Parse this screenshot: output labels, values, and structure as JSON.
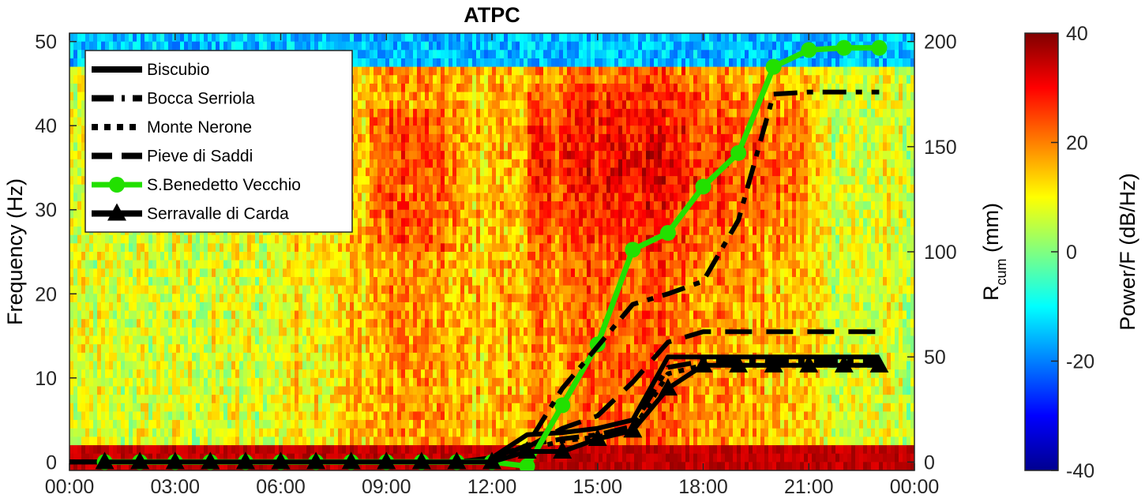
{
  "chart_data": {
    "type": "line",
    "title": "ATPC",
    "background": "spectrogram",
    "xlabel": "",
    "x_tick_labels": [
      "00:00",
      "03:00",
      "06:00",
      "09:00",
      "12:00",
      "15:00",
      "18:00",
      "21:00",
      "00:00"
    ],
    "x_tick_hours": [
      0,
      3,
      6,
      9,
      12,
      15,
      18,
      21,
      24
    ],
    "xlim_hours": [
      0,
      24
    ],
    "left_axis": {
      "label": "Frequency (Hz)",
      "ylim": [
        -1,
        51
      ],
      "ticks": [
        "0",
        "10",
        "20",
        "30",
        "40",
        "50"
      ],
      "tick_values": [
        0,
        10,
        20,
        30,
        40,
        50
      ]
    },
    "right_axis": {
      "label_main": "R",
      "label_sub": "cum",
      "label_unit": " (mm)",
      "ylim": [
        -4,
        204
      ],
      "ticks": [
        "0",
        "50",
        "100",
        "150",
        "200"
      ],
      "tick_values": [
        0,
        50,
        100,
        150,
        200
      ]
    },
    "colorbar": {
      "label": "Power/F (dB/Hz)",
      "range": [
        -40,
        40
      ],
      "ticks": [
        "-40",
        "-20",
        "0",
        "20",
        "40"
      ],
      "tick_values": [
        -40,
        -20,
        0,
        20,
        40
      ]
    },
    "legend_position": "top-left",
    "series": [
      {
        "name": "Biscubio",
        "color": "#000000",
        "style": "solid",
        "marker": "none",
        "x": [
          0,
          11,
          12,
          13,
          14,
          15,
          16,
          17,
          18,
          19,
          20,
          21,
          22,
          23
        ],
        "y": [
          0,
          0,
          2,
          13,
          14,
          16,
          20,
          50,
          50,
          50,
          50,
          50,
          50,
          50
        ]
      },
      {
        "name": "Bocca Serriola",
        "color": "#000000",
        "style": "dashdot",
        "marker": "none",
        "x": [
          0,
          11,
          12,
          13,
          14,
          15,
          16,
          17,
          18,
          19,
          20,
          21,
          22,
          23
        ],
        "y": [
          0,
          0,
          1,
          8,
          11,
          13,
          17,
          45,
          48,
          48,
          48,
          48,
          48,
          48
        ]
      },
      {
        "name": "Monte Nerone",
        "color": "#000000",
        "style": "dotted",
        "marker": "none",
        "x": [
          0,
          11,
          12,
          13,
          14,
          15,
          16,
          17,
          18,
          19,
          20,
          21,
          22,
          23
        ],
        "y": [
          0,
          0,
          1,
          6,
          10,
          12,
          15,
          42,
          46,
          46,
          46,
          46,
          46,
          46
        ]
      },
      {
        "name": "Pieve di Saddi",
        "color": "#000000",
        "style": "dashed",
        "marker": "none",
        "x": [
          0,
          11,
          12,
          13,
          14,
          15,
          16,
          17,
          18,
          19,
          20,
          21,
          22,
          23
        ],
        "y": [
          0,
          0,
          1,
          7,
          16,
          22,
          38,
          57,
          62,
          62,
          62,
          62,
          62,
          62
        ]
      },
      {
        "name": "S.Benedetto Vecchio",
        "color": "#22e000",
        "style": "solid",
        "marker": "circle",
        "x": [
          1,
          2,
          3,
          4,
          5,
          6,
          7,
          8,
          9,
          10,
          11,
          12,
          13,
          14,
          15,
          16,
          17,
          18,
          19,
          20,
          21,
          22,
          23
        ],
        "y": [
          0,
          0,
          0,
          0,
          0,
          0,
          0,
          0,
          0,
          0,
          0,
          0,
          -2,
          27,
          56,
          101,
          109,
          131,
          147,
          188,
          196,
          197,
          197
        ]
      },
      {
        "name": "Serravalle di Carda",
        "color": "#000000",
        "style": "solid",
        "marker": "triangle",
        "x": [
          1,
          2,
          3,
          4,
          5,
          6,
          7,
          8,
          9,
          10,
          11,
          12,
          13,
          14,
          15,
          16,
          17,
          18,
          19,
          20,
          21,
          22,
          23
        ],
        "y": [
          0,
          0,
          0,
          0,
          0,
          0,
          0,
          0,
          0,
          0,
          0,
          0,
          5,
          5,
          11,
          15,
          35,
          46,
          46,
          46,
          46,
          46,
          46
        ]
      },
      {
        "name": "",
        "color": "#000000",
        "style": "dashdot",
        "marker": "none",
        "x": [
          12,
          13,
          14,
          15,
          16,
          17,
          18,
          19,
          20,
          21,
          22,
          23
        ],
        "y": [
          2,
          8,
          35,
          55,
          75,
          80,
          86,
          115,
          175,
          176,
          176,
          176
        ]
      }
    ]
  }
}
